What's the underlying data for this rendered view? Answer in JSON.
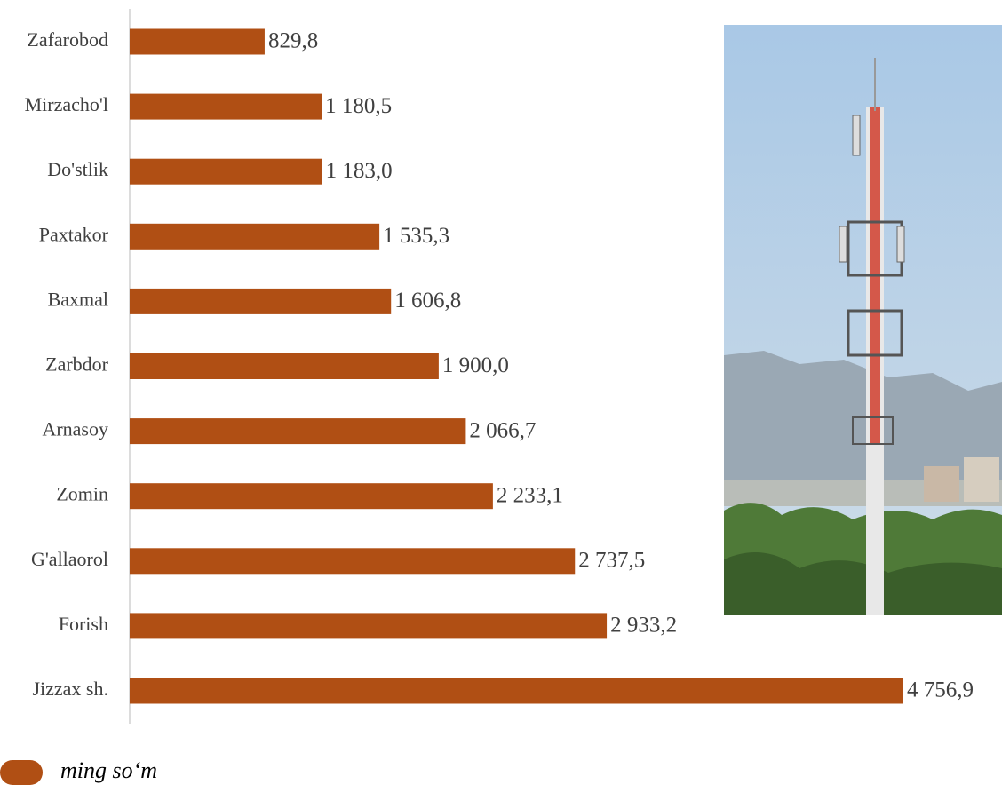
{
  "chart_data": {
    "type": "bar",
    "orientation": "horizontal",
    "categories": [
      "Zafarobod",
      "Mirzacho'l",
      "Do'stlik",
      "Paxtakor",
      "Baxmal",
      "Zarbdor",
      "Arnasoy",
      "Zomin",
      "G'allaorol",
      "Forish",
      "Jizzax sh."
    ],
    "series": [
      {
        "name": "ming so‘m",
        "color": "#b04f14",
        "values": [
          829.8,
          1180.5,
          1183.0,
          1535.3,
          1606.8,
          1900.0,
          2066.7,
          2233.1,
          2737.5,
          2933.2,
          4756.9
        ],
        "value_labels": [
          "829,8",
          "1 180,5",
          "1 183,0",
          "1 535,3",
          "1 606,8",
          "1 900,0",
          "2 066,7",
          "2 233,1",
          "2 737,5",
          "2 933,2",
          "4 756,9"
        ]
      }
    ]
  }
}
